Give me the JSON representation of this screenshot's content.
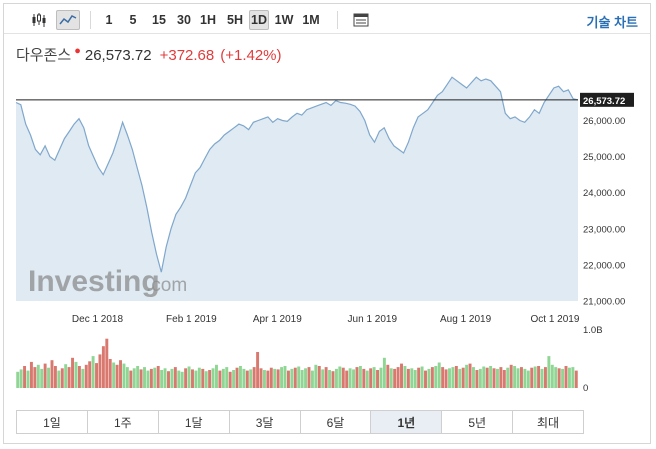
{
  "toolbar": {
    "candles_icon": "candlestick-icon",
    "line_icon": "line-chart-icon",
    "intervals": [
      "1",
      "5",
      "15",
      "30",
      "1H",
      "5H",
      "1D",
      "1W",
      "1M"
    ],
    "selected_interval": "1D",
    "table_icon": "data-table-icon",
    "chart_link": "기술 차트"
  },
  "quote": {
    "name": "다우존스",
    "marker": "●",
    "last": "26,573.72",
    "change": "+372.68",
    "change_pct": "(+1.42%)",
    "up_color": "#e03c3c"
  },
  "watermark": {
    "brand": "Investing",
    "suffix": ".com"
  },
  "ranges": {
    "items": [
      "1일",
      "1주",
      "1달",
      "3달",
      "6달",
      "1년",
      "5년",
      "최대"
    ],
    "selected": "1년"
  },
  "chart_data": {
    "type": "area",
    "price": {
      "ylim": [
        21000,
        27400
      ],
      "yticks": [
        "21,000.00",
        "22,000.00",
        "23,000.00",
        "24,000.00",
        "25,000.00",
        "26,000.00"
      ],
      "ytick_values": [
        21000,
        22000,
        23000,
        24000,
        25000,
        26000
      ],
      "last_label": "26,573.72",
      "last_value": 26573.72,
      "xticks": [
        "Dec 1 2018",
        "Feb 1 2019",
        "Apr 1 2019",
        "Jun 1 2019",
        "Aug 1 2019",
        "Oct 1 2019"
      ],
      "xtick_positions": [
        14.5,
        31.2,
        46.5,
        63.4,
        80.0,
        95.9
      ],
      "x_domain": [
        0,
        100
      ],
      "values": [
        26500,
        26440,
        25900,
        25600,
        25200,
        25050,
        25300,
        25000,
        24900,
        25200,
        25500,
        25700,
        25900,
        26050,
        25800,
        25300,
        25000,
        24700,
        24500,
        24800,
        25100,
        25500,
        25950,
        25600,
        25200,
        24700,
        24200,
        23600,
        22900,
        22300,
        21800,
        22500,
        23000,
        23400,
        23600,
        23850,
        24200,
        24550,
        24700,
        24950,
        25200,
        25350,
        25450,
        25600,
        25700,
        25800,
        25900,
        25850,
        25750,
        25950,
        26000,
        26050,
        26100,
        25950,
        26050,
        26000,
        25980,
        26100,
        26200,
        26150,
        26300,
        26350,
        26400,
        26450,
        26500,
        26420,
        26550,
        26500,
        26480,
        26450,
        26400,
        26250,
        26000,
        25600,
        25400,
        25700,
        25800,
        25500,
        25300,
        25200,
        25100,
        25400,
        25800,
        26100,
        26200,
        26300,
        26500,
        26700,
        26800,
        27000,
        27200,
        27100,
        27000,
        26900,
        27050,
        27200,
        27100,
        27150,
        27100,
        26950,
        26800,
        26200,
        26050,
        26100,
        26000,
        25950,
        26100,
        26300,
        26200,
        26500,
        26700,
        26900,
        26950,
        26800,
        26850,
        26600,
        26573.72
      ],
      "area_color": "#dfeaf3",
      "line_color": "#7fa7cc",
      "grid": false
    },
    "volume": {
      "ytick": "1.0B",
      "ytick_zero": "0",
      "ylim": [
        0,
        1.0
      ],
      "up_color": "#8fd694",
      "down_color": "#d9786e",
      "values": [
        0.28,
        0.32,
        0.38,
        0.3,
        0.45,
        0.36,
        0.4,
        0.33,
        0.42,
        0.35,
        0.48,
        0.38,
        0.3,
        0.34,
        0.41,
        0.36,
        0.52,
        0.45,
        0.38,
        0.33,
        0.4,
        0.46,
        0.55,
        0.43,
        0.58,
        0.72,
        0.85,
        0.5,
        0.44,
        0.4,
        0.48,
        0.42,
        0.36,
        0.3,
        0.34,
        0.38,
        0.32,
        0.36,
        0.3,
        0.33,
        0.35,
        0.38,
        0.31,
        0.34,
        0.29,
        0.33,
        0.36,
        0.3,
        0.28,
        0.34,
        0.37,
        0.32,
        0.3,
        0.35,
        0.33,
        0.29,
        0.31,
        0.34,
        0.4,
        0.3,
        0.33,
        0.36,
        0.28,
        0.31,
        0.35,
        0.38,
        0.33,
        0.3,
        0.32,
        0.36,
        0.62,
        0.34,
        0.31,
        0.3,
        0.35,
        0.33,
        0.32,
        0.36,
        0.38,
        0.3,
        0.33,
        0.35,
        0.37,
        0.31,
        0.34,
        0.36,
        0.3,
        0.4,
        0.38,
        0.32,
        0.36,
        0.31,
        0.29,
        0.33,
        0.37,
        0.35,
        0.3,
        0.34,
        0.32,
        0.36,
        0.38,
        0.33,
        0.3,
        0.34,
        0.36,
        0.31,
        0.35,
        0.52,
        0.4,
        0.34,
        0.33,
        0.36,
        0.42,
        0.38,
        0.33,
        0.34,
        0.31,
        0.35,
        0.37,
        0.3,
        0.33,
        0.36,
        0.38,
        0.44,
        0.36,
        0.32,
        0.34,
        0.36,
        0.38,
        0.33,
        0.35,
        0.4,
        0.42,
        0.36,
        0.31,
        0.33,
        0.37,
        0.35,
        0.38,
        0.34,
        0.33,
        0.36,
        0.31,
        0.35,
        0.4,
        0.38,
        0.34,
        0.36,
        0.33,
        0.3,
        0.35,
        0.37,
        0.38,
        0.33,
        0.36,
        0.55,
        0.4,
        0.36,
        0.34,
        0.33,
        0.38,
        0.35,
        0.36,
        0.3
      ],
      "directions": "UUDUDDUUDUDDUDUDDUDUDDUDDDDDUDDUUDUUDUUDUDUUDUDUUDUDUUDUDUUDUUDUDUUDUDDDUDDUDUUDUDUUUDUUDUDUDUUDDUUDUDUDUDUUDUDDDUDUUDUDUDUUDDUUDUDUDUDUUDUDUDDUDUUDUUDUDUDUUUDUDUUDU"
    }
  }
}
